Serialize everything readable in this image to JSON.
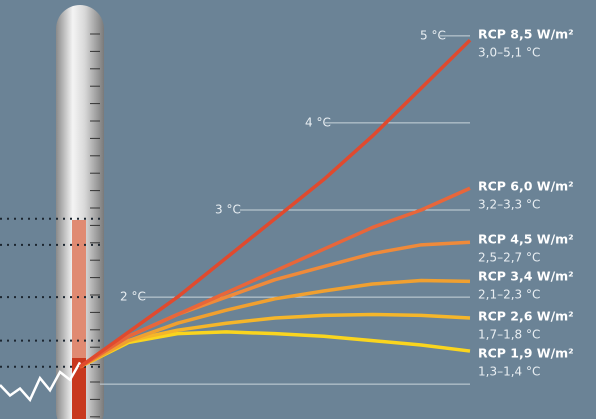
{
  "chart_data": {
    "type": "line",
    "categories": [
      null,
      null,
      null,
      null,
      null,
      null,
      null,
      null,
      null
    ],
    "ylim": [
      0.6,
      5.4
    ],
    "yticks": [
      {
        "value": 1,
        "label": null
      },
      {
        "value": 2,
        "label": "2 °C"
      },
      {
        "value": 3,
        "label": "3 °C"
      },
      {
        "value": 4,
        "label": "4 °C"
      },
      {
        "value": 5,
        "label": "5 °C"
      }
    ],
    "observed": {
      "color": "#ffffff",
      "values": [
        0.99,
        0.87,
        0.95,
        0.82,
        1.07,
        0.93,
        1.14,
        1.05,
        1.25
      ]
    },
    "dotted_levels": [
      2.9,
      2.6,
      2.0,
      1.5,
      1.2
    ],
    "series": [
      {
        "name": "RCP 8,5 W/m²",
        "range": "3,0–5,1 °C",
        "color": "#e04a2e",
        "values": [
          1.2,
          1.6,
          2.0,
          2.45,
          2.9,
          3.35,
          3.85,
          4.4,
          4.95
        ]
      },
      {
        "name": "RCP 6,0 W/m²",
        "range": "3,2–3,3 °C",
        "color": "#e8663a",
        "values": [
          1.2,
          1.55,
          1.8,
          2.05,
          2.3,
          2.55,
          2.8,
          3.0,
          3.25
        ]
      },
      {
        "name": "RCP 4,5 W/m²",
        "range": "2,5–2,7 °C",
        "color": "#ef8a3a",
        "values": [
          1.2,
          1.55,
          1.8,
          2.0,
          2.2,
          2.35,
          2.5,
          2.6,
          2.63
        ]
      },
      {
        "name": "RCP 3,4 W/m²",
        "range": "2,1–2,3 °C",
        "color": "#f0a030",
        "values": [
          1.2,
          1.5,
          1.7,
          1.85,
          1.98,
          2.07,
          2.15,
          2.19,
          2.18
        ]
      },
      {
        "name": "RCP 2,6 W/m²",
        "range": "1,7–1,8 °C",
        "color": "#f5b62a",
        "values": [
          1.2,
          1.5,
          1.62,
          1.7,
          1.76,
          1.79,
          1.8,
          1.79,
          1.76
        ]
      },
      {
        "name": "RCP 1,9 W/m²",
        "range": "1,3–1,4 °C",
        "color": "#fad51e",
        "values": [
          1.2,
          1.48,
          1.58,
          1.6,
          1.58,
          1.55,
          1.5,
          1.45,
          1.38
        ]
      }
    ]
  }
}
